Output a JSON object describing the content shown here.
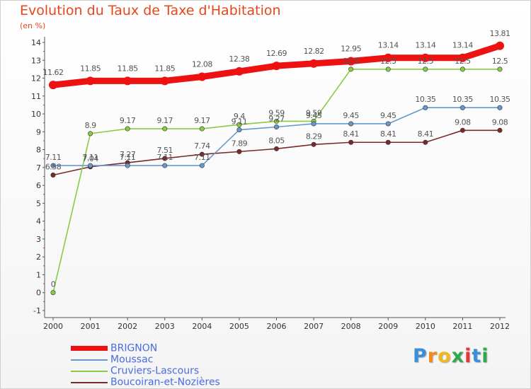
{
  "title": "Evolution du Taux de Taxe d'Habitation",
  "subtitle": "(en %)",
  "logo_text": "Proxiti",
  "chart_data": {
    "type": "line",
    "title": "Evolution du Taux de Taxe d'Habitation",
    "subtitle": "(en %)",
    "xlabel": "",
    "ylabel": "",
    "x": [
      "2000",
      "2001",
      "2002",
      "2003",
      "2004",
      "2005",
      "2006",
      "2007",
      "2008",
      "2009",
      "2010",
      "2011",
      "2012"
    ],
    "ylim": [
      -1,
      14
    ],
    "yticks": [
      "-1",
      "0",
      "1",
      "2",
      "3",
      "4",
      "5",
      "6",
      "7",
      "8",
      "9",
      "10",
      "11",
      "12",
      "13",
      "14"
    ],
    "grid": false,
    "legend_position": "bottom-left",
    "series": [
      {
        "name": "BRIGNON",
        "color": "#ee1111",
        "values": [
          11.62,
          11.85,
          11.85,
          11.85,
          12.08,
          12.38,
          12.69,
          12.82,
          12.95,
          13.14,
          13.14,
          13.14,
          13.81
        ],
        "labels": [
          "11.62",
          "11.85",
          "11.85",
          "11.85",
          "12.08",
          "12.38",
          "12.69",
          "12.82",
          "12.95",
          "13.14",
          "13.14",
          "13.14",
          "13.81"
        ]
      },
      {
        "name": "Moussac",
        "color": "#6699cc",
        "values": [
          7.11,
          7.11,
          7.11,
          7.11,
          7.11,
          9.11,
          9.27,
          9.45,
          9.45,
          9.45,
          10.35,
          10.35,
          10.35
        ],
        "labels": [
          "7.11",
          "7.11",
          "7.11",
          "7.11",
          "7.11",
          "9.11",
          "9.27",
          "9.45",
          "9.45",
          "9.45",
          "10.35",
          "10.35",
          "10.35"
        ]
      },
      {
        "name": "Cruviers-Lascours",
        "color": "#88cc44",
        "values": [
          0,
          8.9,
          9.17,
          9.17,
          9.17,
          9.4,
          9.59,
          9.59,
          12.5,
          12.5,
          12.5,
          12.5,
          12.5
        ],
        "labels": [
          "0",
          "8.9",
          "9.17",
          "9.17",
          "9.17",
          "9.4",
          "9.59",
          "9.59",
          "12.5",
          "12.5",
          "12.5",
          "12.5",
          "12.5"
        ]
      },
      {
        "name": "Boucoiran-et-Nozières",
        "color": "#7a2a2a",
        "values": [
          6.58,
          7.04,
          7.27,
          7.51,
          7.74,
          7.89,
          8.05,
          8.29,
          8.41,
          8.41,
          8.41,
          9.08,
          9.08
        ],
        "labels": [
          "6.58",
          "7.04",
          "7.27",
          "7.51",
          "7.74",
          "7.89",
          "8.05",
          "8.29",
          "8.41",
          "8.41",
          "8.41",
          "9.08",
          "9.08"
        ]
      }
    ]
  }
}
